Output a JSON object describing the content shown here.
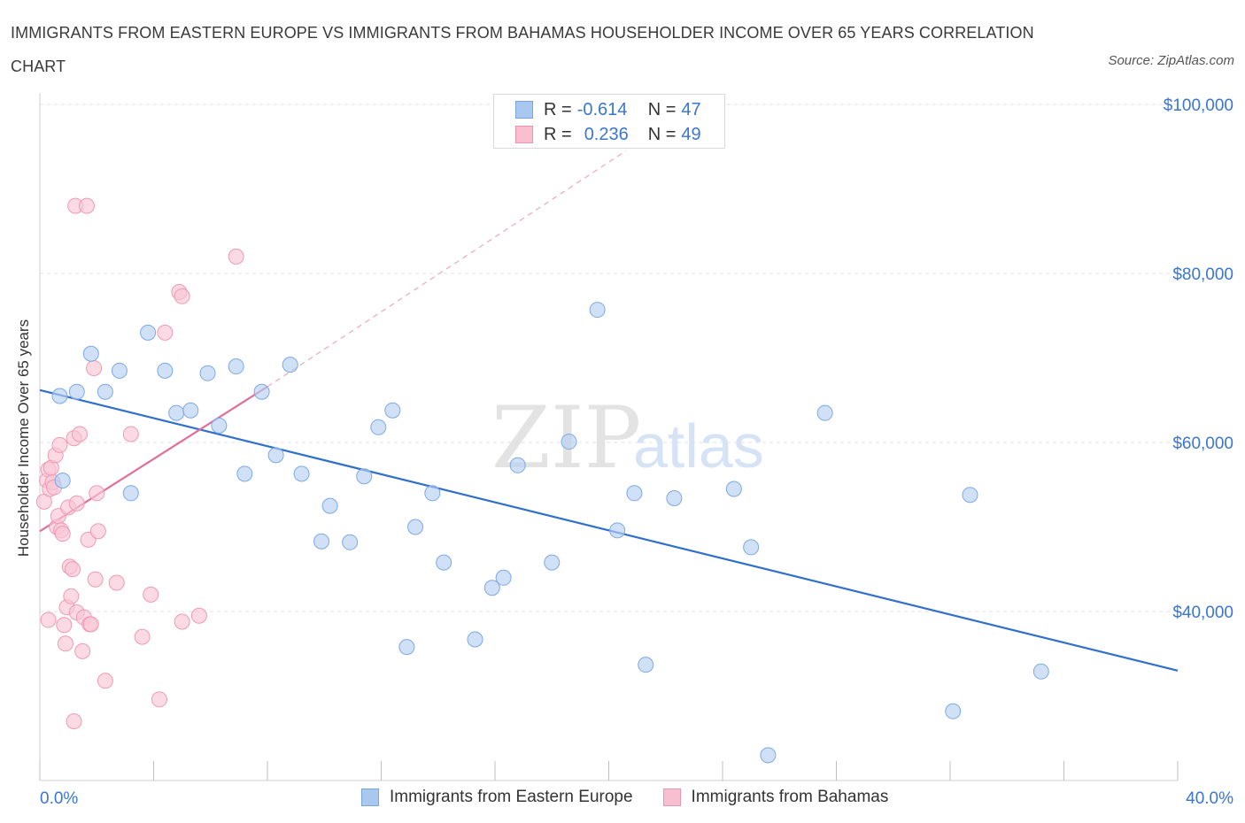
{
  "title": "IMMIGRANTS FROM EASTERN EUROPE VS IMMIGRANTS FROM BAHAMAS HOUSEHOLDER INCOME OVER 65 YEARS CORRELATION CHART",
  "source": "Source: ZipAtlas.com",
  "watermark": {
    "zip": "ZIP",
    "atlas": "atlas"
  },
  "legend": {
    "rows": [
      {
        "r_label": "R =",
        "r_value": "-0.614",
        "n_label": "N =",
        "n_value": "47",
        "color": "#a9c8f0",
        "border": "#7aa5e0"
      },
      {
        "r_label": "R =",
        "r_value": "0.236",
        "n_label": "N =",
        "n_value": "49",
        "color": "#f8bfd0",
        "border": "#ec93ad"
      }
    ]
  },
  "colors": {
    "blue_fill": "#b5d0f3",
    "blue_stroke": "#7ea9e2",
    "blue_line": "#2f6fcf",
    "pink_fill": "#f9c6d5",
    "pink_stroke": "#ef9ab4",
    "pink_line": "#e0709a",
    "axis_label": "#3a76d0"
  },
  "chart_data": {
    "type": "scatter",
    "title": "IMMIGRANTS FROM EASTERN EUROPE VS IMMIGRANTS FROM BAHAMAS HOUSEHOLDER INCOME OVER 65 YEARS CORRELATION CHART",
    "xlabel": "",
    "ylabel": "Householder Income Over 65 years",
    "xlim": [
      0,
      40
    ],
    "ylim": [
      20000,
      103000
    ],
    "x_tick_labels": [
      "0.0%",
      "40.0%"
    ],
    "y_ticks": [
      40000,
      60000,
      80000,
      100000
    ],
    "y_tick_labels": [
      "$40,000",
      "$60,000",
      "$80,000",
      "$100,000"
    ],
    "grid": "horizontal dashed",
    "series": [
      {
        "name": "Immigrants from Eastern Europe",
        "points": [
          [
            0.7,
            65500
          ],
          [
            0.8,
            55500
          ],
          [
            1.3,
            66000
          ],
          [
            1.8,
            70500
          ],
          [
            2.3,
            66000
          ],
          [
            2.8,
            68500
          ],
          [
            3.2,
            54000
          ],
          [
            3.8,
            73000
          ],
          [
            4.4,
            68500
          ],
          [
            4.8,
            63500
          ],
          [
            5.3,
            63800
          ],
          [
            5.9,
            68200
          ],
          [
            6.3,
            62000
          ],
          [
            6.9,
            69000
          ],
          [
            7.2,
            56300
          ],
          [
            7.8,
            66000
          ],
          [
            8.3,
            58500
          ],
          [
            8.8,
            69200
          ],
          [
            9.2,
            56300
          ],
          [
            9.9,
            48300
          ],
          [
            10.2,
            52500
          ],
          [
            10.9,
            48200
          ],
          [
            11.4,
            56000
          ],
          [
            11.9,
            61800
          ],
          [
            12.4,
            63800
          ],
          [
            12.9,
            35800
          ],
          [
            13.2,
            50000
          ],
          [
            13.8,
            54000
          ],
          [
            14.2,
            45800
          ],
          [
            15.3,
            36700
          ],
          [
            15.9,
            42800
          ],
          [
            16.3,
            44000
          ],
          [
            16.8,
            57300
          ],
          [
            18.0,
            45800
          ],
          [
            18.6,
            60100
          ],
          [
            19.6,
            75700
          ],
          [
            20.3,
            49600
          ],
          [
            20.9,
            54000
          ],
          [
            21.3,
            33700
          ],
          [
            22.3,
            53400
          ],
          [
            24.4,
            54500
          ],
          [
            25.0,
            47600
          ],
          [
            25.6,
            23000
          ],
          [
            27.6,
            63500
          ],
          [
            32.1,
            28200
          ],
          [
            32.7,
            53800
          ],
          [
            35.2,
            32900
          ]
        ]
      },
      {
        "name": "Immigrants from Bahamas",
        "points": [
          [
            0.15,
            53000
          ],
          [
            0.25,
            55500
          ],
          [
            0.3,
            56800
          ],
          [
            0.35,
            54500
          ],
          [
            0.4,
            57000
          ],
          [
            0.45,
            55300
          ],
          [
            0.5,
            54700
          ],
          [
            0.55,
            58500
          ],
          [
            0.6,
            50000
          ],
          [
            0.65,
            51300
          ],
          [
            0.7,
            59700
          ],
          [
            0.75,
            49600
          ],
          [
            0.8,
            49200
          ],
          [
            0.85,
            38400
          ],
          [
            0.9,
            36200
          ],
          [
            0.95,
            40500
          ],
          [
            1.0,
            52300
          ],
          [
            1.05,
            45300
          ],
          [
            1.1,
            41800
          ],
          [
            1.15,
            45000
          ],
          [
            1.2,
            60500
          ],
          [
            1.25,
            88000
          ],
          [
            1.3,
            39900
          ],
          [
            1.4,
            61000
          ],
          [
            1.5,
            35300
          ],
          [
            1.55,
            39300
          ],
          [
            1.65,
            88000
          ],
          [
            1.7,
            48500
          ],
          [
            1.75,
            38500
          ],
          [
            1.8,
            38500
          ],
          [
            1.9,
            68800
          ],
          [
            1.95,
            43800
          ],
          [
            2.0,
            54000
          ],
          [
            2.05,
            49500
          ],
          [
            1.2,
            27000
          ],
          [
            2.3,
            31800
          ],
          [
            2.7,
            43400
          ],
          [
            3.2,
            61000
          ],
          [
            3.6,
            37000
          ],
          [
            3.9,
            42000
          ],
          [
            4.2,
            29600
          ],
          [
            4.4,
            73000
          ],
          [
            4.9,
            77800
          ],
          [
            5.0,
            77300
          ],
          [
            5.0,
            38800
          ],
          [
            5.6,
            39500
          ],
          [
            6.9,
            82000
          ],
          [
            1.3,
            52800
          ],
          [
            0.3,
            39000
          ]
        ]
      }
    ],
    "trend_lines": [
      {
        "series": "Immigrants from Eastern Europe",
        "x": [
          0,
          40
        ],
        "y": [
          66200,
          33000
        ]
      },
      {
        "series": "Immigrants from Bahamas",
        "x": [
          0,
          8
        ],
        "y": [
          49500,
          66600
        ],
        "dashed_extension_to": [
          20.6,
          94500
        ]
      }
    ],
    "legend_position": "top-center"
  },
  "bottom_legend": {
    "items": [
      {
        "label": "Immigrants from Eastern Europe",
        "color": "#a9c8f0",
        "border": "#7aa5e0"
      },
      {
        "label": "Immigrants from Bahamas",
        "color": "#f8bfd0",
        "border": "#ec93ad"
      }
    ]
  }
}
